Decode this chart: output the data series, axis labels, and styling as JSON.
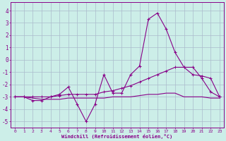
{
  "xlabel": "Windchill (Refroidissement éolien,°C)",
  "bg_color": "#cceee8",
  "grid_color": "#aabbcc",
  "line_color": "#880088",
  "spine_color": "#880088",
  "xlim": [
    -0.5,
    23.5
  ],
  "ylim": [
    -5.5,
    4.7
  ],
  "xticks": [
    0,
    1,
    2,
    3,
    4,
    5,
    6,
    7,
    8,
    9,
    10,
    11,
    12,
    13,
    14,
    15,
    16,
    17,
    18,
    19,
    20,
    21,
    22,
    23
  ],
  "yticks": [
    -5,
    -4,
    -3,
    -2,
    -1,
    0,
    1,
    2,
    3,
    4
  ],
  "line1_x": [
    0,
    1,
    2,
    3,
    4,
    5,
    6,
    7,
    8,
    9,
    10,
    11,
    12,
    13,
    14,
    15,
    16,
    17,
    18,
    19,
    20,
    21,
    22,
    23
  ],
  "line1_y": [
    -3.0,
    -3.0,
    -3.3,
    -3.3,
    -3.0,
    -2.8,
    -2.2,
    -3.6,
    -5.0,
    -3.6,
    -1.2,
    -2.7,
    -2.7,
    -1.2,
    -0.5,
    3.3,
    3.8,
    2.5,
    0.6,
    -0.6,
    -0.6,
    -1.5,
    -2.6,
    -3.0
  ],
  "line2_x": [
    0,
    1,
    2,
    3,
    4,
    5,
    6,
    7,
    8,
    9,
    10,
    11,
    12,
    13,
    14,
    15,
    16,
    17,
    18,
    19,
    20,
    21,
    22,
    23
  ],
  "line2_y": [
    -3.0,
    -3.0,
    -3.0,
    -3.0,
    -3.0,
    -2.9,
    -2.8,
    -2.8,
    -2.8,
    -2.8,
    -2.6,
    -2.5,
    -2.3,
    -2.1,
    -1.8,
    -1.5,
    -1.2,
    -0.9,
    -0.6,
    -0.6,
    -1.2,
    -1.3,
    -1.5,
    -3.0
  ],
  "line3_x": [
    0,
    1,
    2,
    3,
    4,
    5,
    6,
    7,
    8,
    9,
    10,
    11,
    12,
    13,
    14,
    15,
    16,
    17,
    18,
    19,
    20,
    21,
    22,
    23
  ],
  "line3_y": [
    -3.0,
    -3.0,
    -3.1,
    -3.2,
    -3.2,
    -3.2,
    -3.1,
    -3.1,
    -3.1,
    -3.1,
    -3.1,
    -3.0,
    -3.0,
    -3.0,
    -2.9,
    -2.8,
    -2.8,
    -2.7,
    -2.7,
    -3.0,
    -3.0,
    -3.0,
    -3.1,
    -3.1
  ]
}
